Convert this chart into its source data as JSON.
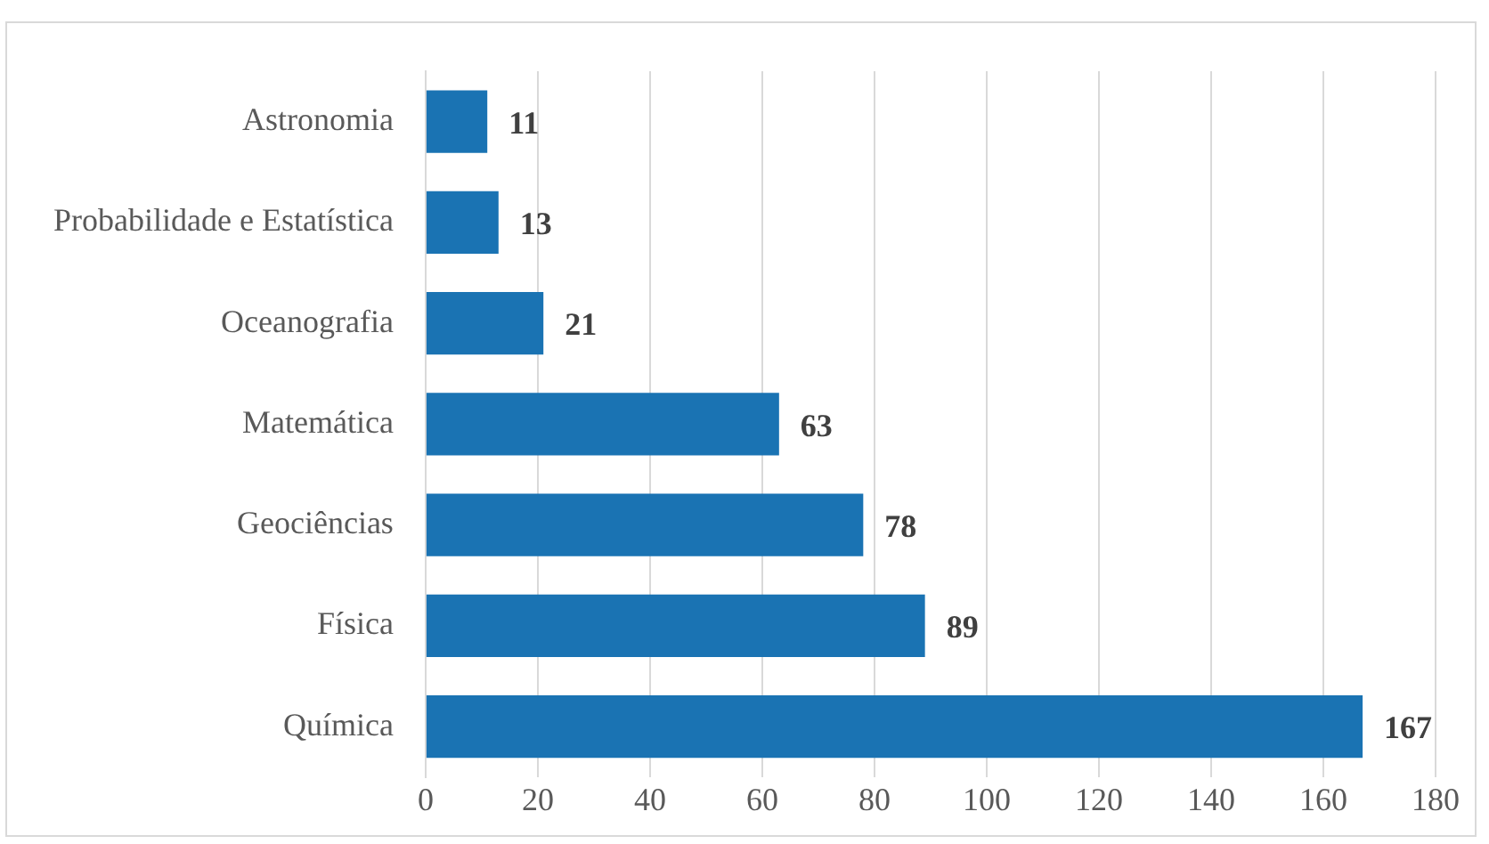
{
  "chart_data": {
    "type": "bar",
    "orientation": "horizontal",
    "categories": [
      "Astronomia",
      "Probabilidade e Estatística",
      "Oceanografia",
      "Matemática",
      "Geociências",
      "Física",
      "Química"
    ],
    "values": [
      11,
      13,
      21,
      63,
      78,
      89,
      167
    ],
    "color": "#1a73b3",
    "xlim": [
      0,
      180
    ],
    "xticks": [
      0,
      20,
      40,
      60,
      80,
      100,
      120,
      140,
      160,
      180
    ],
    "grid": "x",
    "data_labels": true,
    "legend": false
  }
}
